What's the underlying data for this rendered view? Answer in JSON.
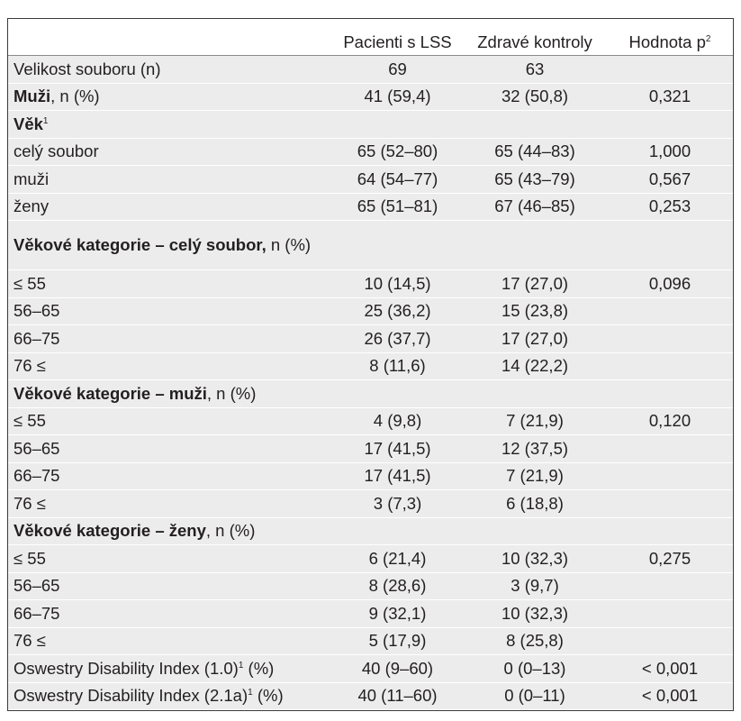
{
  "header": {
    "col0": "",
    "col1": "Pacienti s LSS",
    "col2": "Zdravé kontroly",
    "col3": "Hodnota p",
    "col3_sup": "2"
  },
  "rows": [
    {
      "label": "Velikost souboru (n)",
      "bold": "",
      "sup": "",
      "suffix": "",
      "v1": "69",
      "v2": "63",
      "p": ""
    },
    {
      "label": "",
      "bold": "Muži",
      "sup": "",
      "suffix": ", n (%)",
      "v1": "41 (59,4)",
      "v2": "32 (50,8)",
      "p": "0,321"
    },
    {
      "label": "",
      "bold": "Věk",
      "sup": "1",
      "suffix": "",
      "v1": "",
      "v2": "",
      "p": ""
    },
    {
      "label": "celý soubor",
      "bold": "",
      "sup": "",
      "suffix": "",
      "v1": "65 (52–80)",
      "v2": "65 (44–83)",
      "p": "1,000"
    },
    {
      "label": "muži",
      "bold": "",
      "sup": "",
      "suffix": "",
      "v1": "64 (54–77)",
      "v2": "65 (43–79)",
      "p": "0,567"
    },
    {
      "label": "ženy",
      "bold": "",
      "sup": "",
      "suffix": "",
      "v1": "65 (51–81)",
      "v2": "67 (46–85)",
      "p": "0,253"
    },
    {
      "label": "",
      "bold": "Věkové kategorie – celý soubor,",
      "sup": "",
      "suffix": " n (%)",
      "v1": "",
      "v2": "",
      "p": ""
    },
    {
      "label": "≤ 55",
      "bold": "",
      "sup": "",
      "suffix": "",
      "v1": "10 (14,5)",
      "v2": "17 (27,0)",
      "p": "0,096"
    },
    {
      "label": "56–65",
      "bold": "",
      "sup": "",
      "suffix": "",
      "v1": "25 (36,2)",
      "v2": "15 (23,8)",
      "p": ""
    },
    {
      "label": "66–75",
      "bold": "",
      "sup": "",
      "suffix": "",
      "v1": "26 (37,7)",
      "v2": "17 (27,0)",
      "p": ""
    },
    {
      "label": "76 ≤",
      "bold": "",
      "sup": "",
      "suffix": "",
      "v1": "8 (11,6)",
      "v2": "14 (22,2)",
      "p": ""
    },
    {
      "label": "",
      "bold": "Věkové kategorie – muži",
      "sup": "",
      "suffix": ", n (%)",
      "v1": "",
      "v2": "",
      "p": ""
    },
    {
      "label": "≤ 55",
      "bold": "",
      "sup": "",
      "suffix": "",
      "v1": "4 (9,8)",
      "v2": "7 (21,9)",
      "p": "0,120"
    },
    {
      "label": "56–65",
      "bold": "",
      "sup": "",
      "suffix": "",
      "v1": "17 (41,5)",
      "v2": "12 (37,5)",
      "p": ""
    },
    {
      "label": "66–75",
      "bold": "",
      "sup": "",
      "suffix": "",
      "v1": "17 (41,5)",
      "v2": "7 (21,9)",
      "p": ""
    },
    {
      "label": "76 ≤",
      "bold": "",
      "sup": "",
      "suffix": "",
      "v1": "3 (7,3)",
      "v2": "6 (18,8)",
      "p": ""
    },
    {
      "label": "",
      "bold": "Věkové kategorie – ženy",
      "sup": "",
      "suffix": ", n (%)",
      "v1": "",
      "v2": "",
      "p": ""
    },
    {
      "label": "≤ 55",
      "bold": "",
      "sup": "",
      "suffix": "",
      "v1": "6 (21,4)",
      "v2": "10 (32,3)",
      "p": "0,275"
    },
    {
      "label": "56–65",
      "bold": "",
      "sup": "",
      "suffix": "",
      "v1": "8 (28,6)",
      "v2": "3 (9,7)",
      "p": ""
    },
    {
      "label": "66–75",
      "bold": "",
      "sup": "",
      "suffix": "",
      "v1": "9 (32,1)",
      "v2": "10 (32,3)",
      "p": ""
    },
    {
      "label": "76 ≤",
      "bold": "",
      "sup": "",
      "suffix": "",
      "v1": "5 (17,9)",
      "v2": "8 (25,8)",
      "p": ""
    },
    {
      "label": "Oswestry Disability Index (1.0)",
      "bold": "",
      "sup": "1",
      "suffix": "  (%)",
      "v1": "40 (9–60)",
      "v2": "0 (0–13)",
      "p": "< 0,001"
    },
    {
      "label": "Oswestry Disability Index (2.1a)",
      "bold": "",
      "sup": "1",
      "suffix": " (%)",
      "v1": "40 (11–60)",
      "v2": "0 (0–11)",
      "p": "< 0,001"
    }
  ]
}
